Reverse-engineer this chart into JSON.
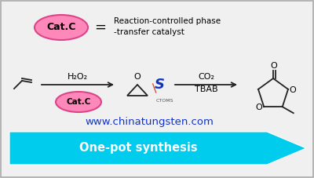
{
  "bg_color": "#f0f0f0",
  "border_color": "#aaaaaa",
  "cat_ellipse_color": "#ff88bb",
  "cat_ellipse_edge": "#dd4488",
  "cat_text": "Cat.C",
  "eq_text": "=",
  "desc_line1": "Reaction-controlled phase",
  "desc_line2": "-transfer catalyst",
  "h2o2_text": "H₂O₂",
  "co2_text": "CO₂",
  "tbab_text": "TBAB",
  "website_text": "www.chinatungsten.com",
  "website_color": "#1133cc",
  "one_pot_text": "One-pot synthesis",
  "arrow_color": "#00ccee",
  "line_color": "#222222",
  "logo_blue": "#1133bb",
  "logo_red": "#cc2200"
}
